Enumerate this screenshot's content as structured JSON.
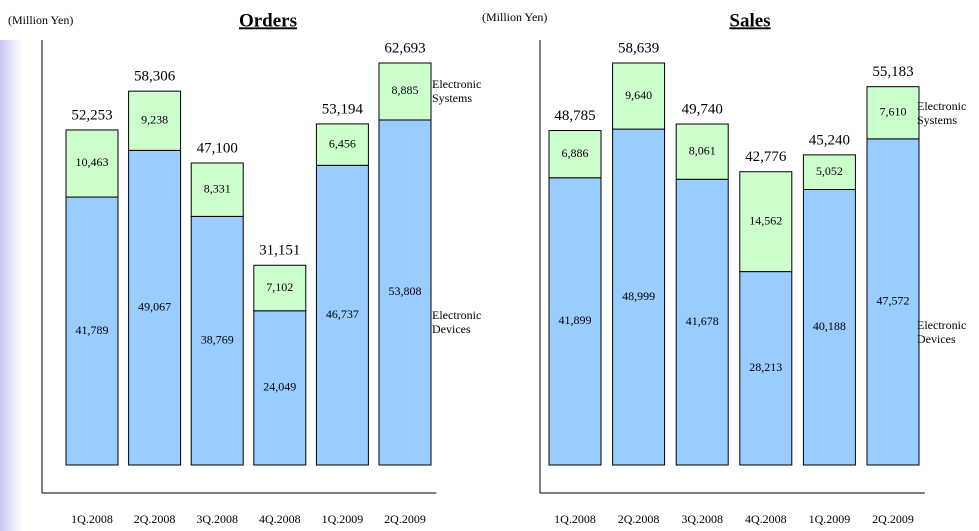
{
  "chart_data": [
    {
      "type": "bar",
      "stacked": true,
      "title": "Orders",
      "unit_label": "(Million Yen)",
      "categories": [
        "1Q.2008",
        "2Q.2008",
        "3Q.2008",
        "4Q.2008",
        "1Q.2009",
        "2Q.2009"
      ],
      "series": [
        {
          "name": "Electronic Devices",
          "color": "#99ccff",
          "values": [
            41789,
            49067,
            38769,
            24049,
            46737,
            53808
          ],
          "value_labels": [
            "41,789",
            "49,067",
            "38,769",
            "24,049",
            "46,737",
            "53,808"
          ]
        },
        {
          "name": "Electronic Systems",
          "color": "#ccffcc",
          "values": [
            10463,
            9238,
            8331,
            7102,
            6456,
            8885
          ],
          "value_labels": [
            "10,463",
            "9,238",
            "8,331",
            "7,102",
            "6,456",
            "8,885"
          ]
        }
      ],
      "total_labels": [
        "52,253",
        "58,306",
        "47,100",
        "31,151",
        "53,194",
        "62,693"
      ]
    },
    {
      "type": "bar",
      "stacked": true,
      "title": "Sales",
      "unit_label": "(Million Yen)",
      "categories": [
        "1Q.2008",
        "2Q.2008",
        "3Q.2008",
        "4Q.2008",
        "1Q.2009",
        "2Q.2009"
      ],
      "series": [
        {
          "name": "Electronic Devices",
          "color": "#99ccff",
          "values": [
            41899,
            48999,
            41678,
            28213,
            40188,
            47572
          ],
          "value_labels": [
            "41,899",
            "48,999",
            "41,678",
            "28,213",
            "40,188",
            "47,572"
          ]
        },
        {
          "name": "Electronic Systems",
          "color": "#ccffcc",
          "values": [
            6886,
            9640,
            8061,
            14562,
            5052,
            7610
          ],
          "value_labels": [
            "6,886",
            "9,640",
            "8,061",
            "14,562",
            "5,052",
            "7,610"
          ]
        }
      ],
      "total_labels": [
        "48,785",
        "58,639",
        "49,740",
        "42,776",
        "45,240",
        "55,183"
      ]
    }
  ]
}
